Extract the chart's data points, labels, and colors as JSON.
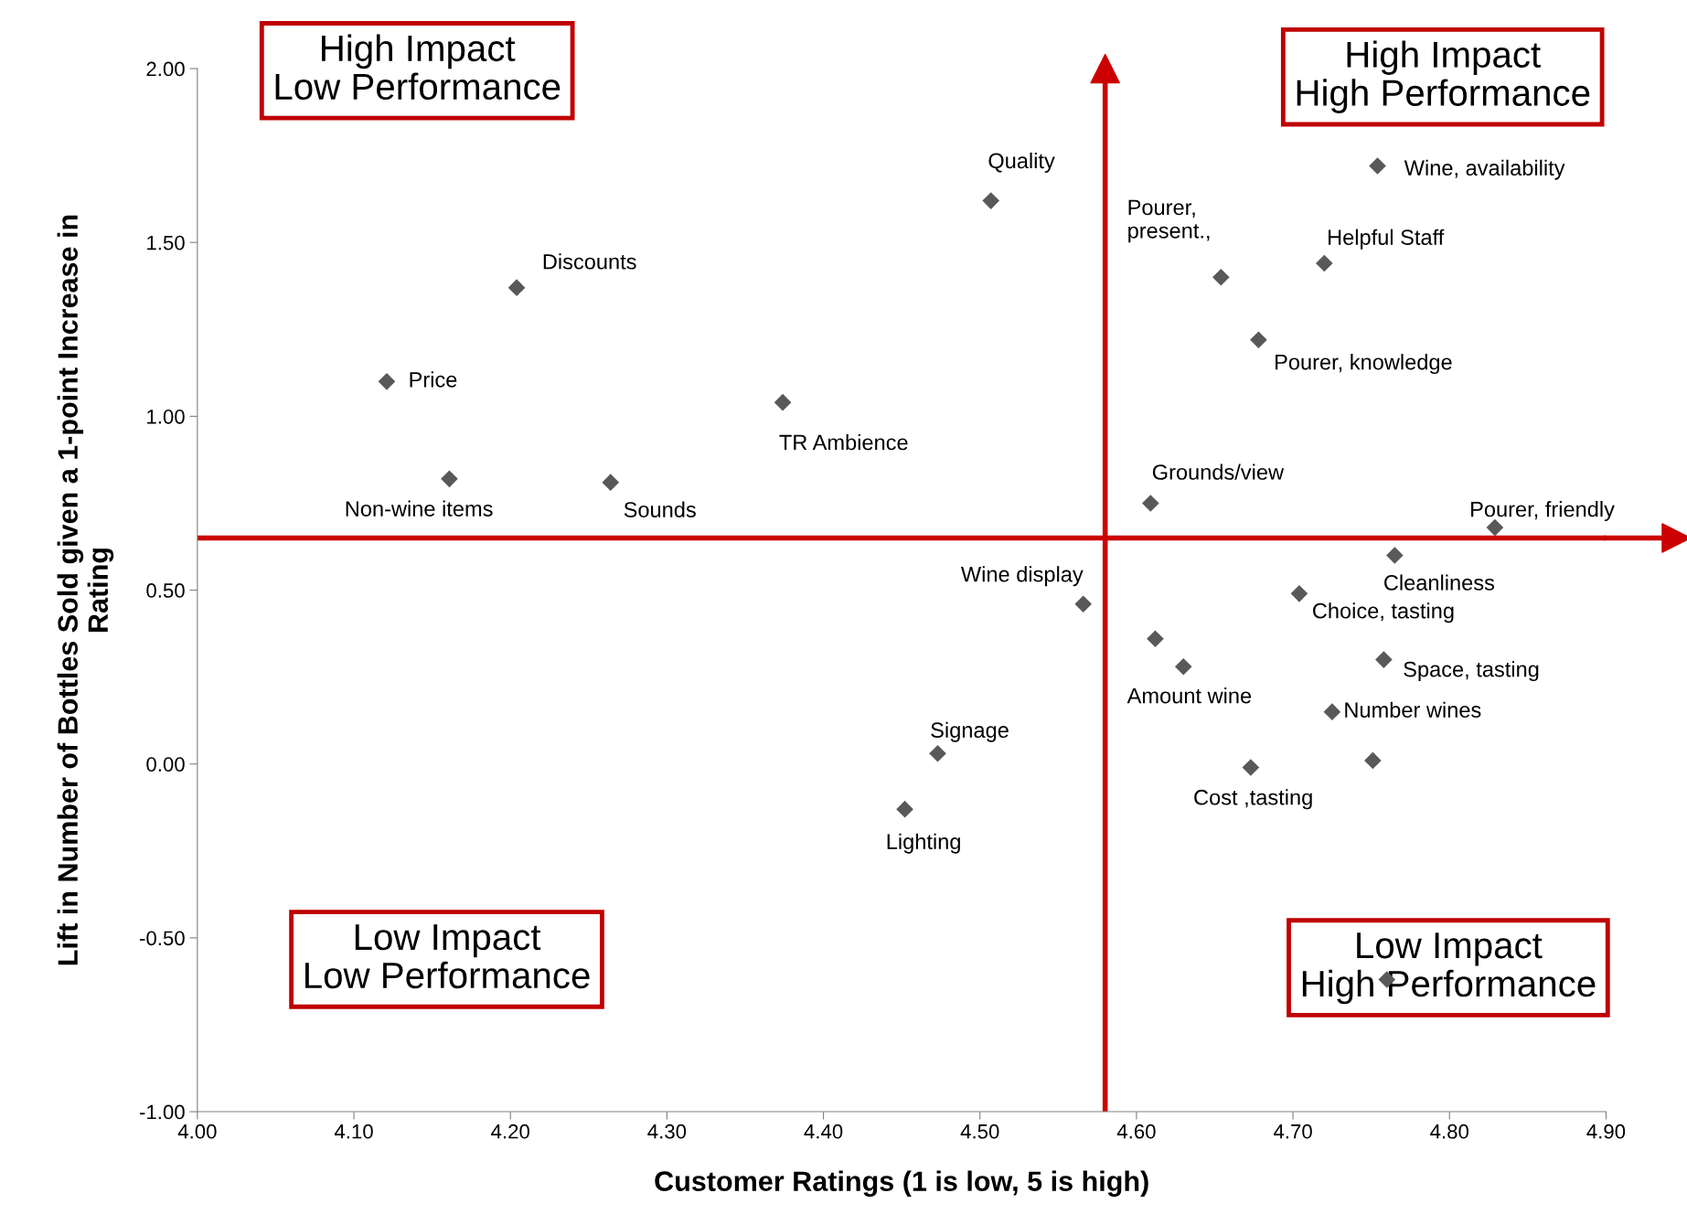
{
  "chart_data": {
    "type": "scatter",
    "xlabel": "Customer Ratings (1 is low, 5 is high)",
    "ylabel": "Lift in Number of Bottles Sold given a 1-point Increase in\nRating",
    "xlim": [
      4.0,
      4.9
    ],
    "xticks": [
      {
        "value": 4.0,
        "label": "4.00"
      },
      {
        "value": 4.1,
        "label": "4.10"
      },
      {
        "value": 4.2,
        "label": "4.20"
      },
      {
        "value": 4.3,
        "label": "4.30"
      },
      {
        "value": 4.4,
        "label": "4.40"
      },
      {
        "value": 4.5,
        "label": "4.50"
      },
      {
        "value": 4.6,
        "label": "4.60"
      },
      {
        "value": 4.7,
        "label": "4.70"
      },
      {
        "value": 4.8,
        "label": "4.80"
      },
      {
        "value": 4.9,
        "label": "4.90"
      }
    ],
    "ylim": [
      -1.0,
      2.0
    ],
    "yticks": [
      {
        "value": -1.0,
        "label": "-1.00"
      },
      {
        "value": -0.5,
        "label": "-0.50"
      },
      {
        "value": 0.0,
        "label": "0.00"
      },
      {
        "value": 0.5,
        "label": "0.50"
      },
      {
        "value": 1.0,
        "label": "1.00"
      },
      {
        "value": 1.5,
        "label": "1.50"
      },
      {
        "value": 2.0,
        "label": "2.00"
      }
    ],
    "grid": false,
    "marker": "diamond",
    "series": [
      {
        "color": "#595959",
        "x": [
          4.507,
          4.204,
          4.121,
          4.374,
          4.161,
          4.264,
          4.566,
          4.473,
          4.452,
          4.754,
          4.72,
          4.654,
          4.678,
          4.609,
          4.829,
          4.765,
          4.704,
          4.612,
          4.63,
          4.758,
          4.725,
          4.751,
          4.673,
          4.76
        ],
        "values": [
          1.62,
          1.37,
          1.1,
          1.04,
          0.82,
          0.81,
          0.46,
          0.03,
          -0.13,
          1.72,
          1.44,
          1.4,
          1.22,
          0.75,
          0.68,
          0.6,
          0.49,
          0.36,
          0.28,
          0.3,
          0.15,
          0.01,
          -0.01,
          -0.62
        ]
      }
    ],
    "ref_lines": [
      {
        "axis": "x",
        "value": 4.58,
        "color": "#cc0000"
      },
      {
        "axis": "y",
        "value": 0.65,
        "color": "#cc0000"
      }
    ],
    "annotations": [
      "High Impact\nLow Performance",
      "High Impact\nHigh Performance",
      "Low Impact\nLow Performance",
      "Low Impact\nHigh Performance",
      "Pourer,\npresent.,",
      "Amount wine",
      {
        "text": "Quality",
        "x": 4.507,
        "y": 1.62
      },
      {
        "text": "Discounts",
        "x": 4.204,
        "y": 1.37
      },
      {
        "text": "Price",
        "x": 4.121,
        "y": 1.1
      },
      {
        "text": "TR Ambience",
        "x": 4.374,
        "y": 1.04
      },
      {
        "text": "Non-wine items",
        "x": 4.161,
        "y": 0.82
      },
      {
        "text": "Sounds",
        "x": 4.264,
        "y": 0.81
      },
      {
        "text": "Wine display",
        "x": 4.566,
        "y": 0.46
      },
      {
        "text": "Signage",
        "x": 4.473,
        "y": 0.03
      },
      {
        "text": "Lighting",
        "x": 4.452,
        "y": -0.13
      },
      {
        "text": "Wine, availability",
        "x": 4.754,
        "y": 1.72
      },
      {
        "text": "Helpful Staff",
        "x": 4.72,
        "y": 1.44
      },
      {
        "text": "Pourer, knowledge",
        "x": 4.678,
        "y": 1.22
      },
      {
        "text": "Grounds/view",
        "x": 4.609,
        "y": 0.75
      },
      {
        "text": "Pourer, friendly",
        "x": 4.829,
        "y": 0.68
      },
      {
        "text": "Cleanliness",
        "x": 4.765,
        "y": 0.6
      },
      {
        "text": "Choice, tasting",
        "x": 4.704,
        "y": 0.49
      },
      {
        "text": "Space, tasting",
        "x": 4.758,
        "y": 0.3
      },
      {
        "text": "Number wines",
        "x": 4.725,
        "y": 0.15
      },
      {
        "text": "Cost ,tasting",
        "x": 4.673,
        "y": -0.01
      }
    ]
  }
}
